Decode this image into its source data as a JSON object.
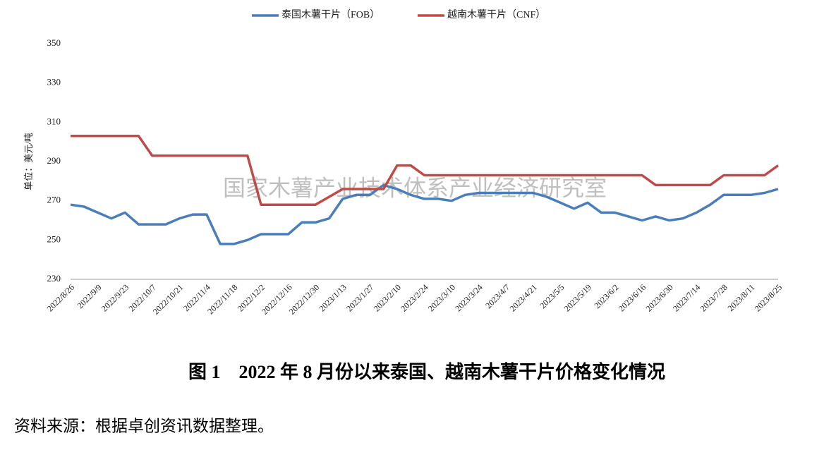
{
  "chart_data": {
    "type": "line",
    "ylabel": "单位：美元/吨",
    "watermark": "国家木薯产业技术体系产业经济研究室",
    "caption": "图 1　2022 年 8 月份以来泰国、越南木薯干片价格变化情况",
    "source": "资料来源：根据卓创资讯数据整理。",
    "categories": [
      "2022/8/26",
      null,
      "2022/9/9",
      null,
      "2022/9/23",
      null,
      "2022/10/7",
      null,
      "2022/10/21",
      null,
      "2022/11/4",
      null,
      "2022/11/18",
      null,
      "2022/12/2",
      null,
      "2022/12/16",
      null,
      "2022/12/30",
      null,
      "2023/1/13",
      null,
      "2023/1/27",
      null,
      "2023/2/10",
      null,
      "2023/2/24",
      null,
      "2023/3/10",
      null,
      "2023/3/24",
      null,
      "2023/4/7",
      null,
      "2023/4/21",
      null,
      "2023/5/5",
      null,
      "2023/5/19",
      null,
      "2023/6/2",
      null,
      "2023/6/16",
      null,
      "2023/6/30",
      null,
      "2023/7/14",
      null,
      "2023/7/28",
      null,
      "2023/8/11",
      null,
      "2023/8/25"
    ],
    "series": [
      {
        "name": "泰国木薯干片（FOB）",
        "color": "#4a7ebb",
        "values": [
          268,
          267,
          264,
          261,
          264,
          258,
          258,
          258,
          261,
          263,
          263,
          248,
          248,
          250,
          253,
          253,
          253,
          259,
          259,
          261,
          271,
          273,
          273,
          278,
          276,
          273,
          271,
          271,
          270,
          273,
          274,
          274,
          274,
          274,
          274,
          272,
          269,
          266,
          269,
          264,
          264,
          262,
          260,
          262,
          260,
          261,
          264,
          268,
          273,
          273,
          273,
          274,
          276
        ]
      },
      {
        "name": "越南木薯干片（CNF）",
        "color": "#be4b48",
        "values": [
          303,
          303,
          303,
          303,
          303,
          303,
          293,
          293,
          293,
          293,
          293,
          293,
          293,
          293,
          268,
          268,
          268,
          268,
          268,
          272,
          276,
          276,
          276,
          276,
          288,
          288,
          283,
          283,
          283,
          283,
          283,
          283,
          283,
          283,
          283,
          283,
          283,
          283,
          283,
          283,
          283,
          283,
          283,
          278,
          278,
          278,
          278,
          278,
          283,
          283,
          283,
          283,
          288
        ]
      }
    ],
    "ylim": [
      230,
      350
    ],
    "yticks": [
      230,
      250,
      270,
      290,
      310,
      330,
      350
    ],
    "grid": false,
    "legend": "top"
  }
}
